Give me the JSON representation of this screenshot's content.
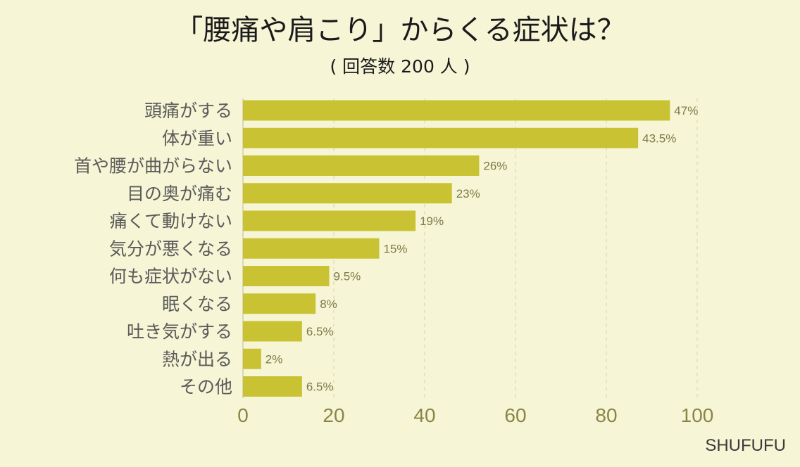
{
  "header": {
    "title": "「腰痛や肩こり」からくる症状は？",
    "subtitle": "( 回答数 200 人 )"
  },
  "brand": "SHUFUFU",
  "colors": {
    "background": "#f6f5d6",
    "bar": "#c9c333",
    "value_text": "#7d7a45",
    "tick_text": "#8a8545",
    "category_text": "#5a5a5a"
  },
  "chart_data": {
    "type": "bar",
    "orientation": "horizontal",
    "title": "「腰痛や肩こり」からくる症状は？",
    "subtitle": "( 回答数 200 人 )",
    "categories": [
      "頭痛がする",
      "体が重い",
      "首や腰が曲がらない",
      "目の奥が痛む",
      "痛くて動けない",
      "気分が悪くなる",
      "何も症状がない",
      "眠くなる",
      "吐き気がする",
      "熱が出る",
      "その他"
    ],
    "values": [
      47,
      43.5,
      26,
      23,
      19,
      15,
      9.5,
      8,
      6.5,
      2,
      6.5
    ],
    "value_labels": [
      "47%",
      "43.5%",
      "26%",
      "23%",
      "19%",
      "15%",
      "9.5%",
      "8%",
      "6.5%",
      "2%",
      "6.5%"
    ],
    "bar_scale": 2,
    "xlim": [
      0,
      100
    ],
    "xticks": [
      0,
      20,
      40,
      60,
      80,
      100
    ],
    "xtick_labels": [
      "0",
      "20",
      "40",
      "60",
      "80",
      "100"
    ],
    "grid": true,
    "legend": "none"
  }
}
